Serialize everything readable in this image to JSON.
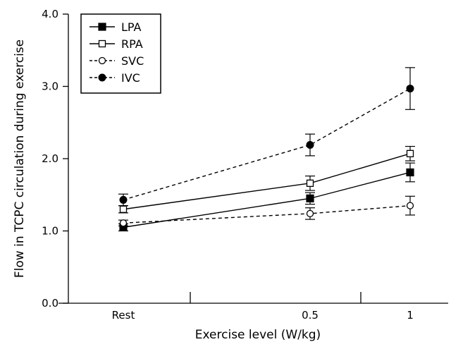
{
  "chart_data": {
    "type": "line",
    "xlabel": "Exercise level (W/kg)",
    "ylabel": "Flow in TCPC circulation during exercise",
    "ylim": [
      0,
      4
    ],
    "yticks": [
      "0.0",
      "1.0",
      "2.0",
      "3.0",
      "4.0"
    ],
    "categories": [
      "Rest",
      "0.5",
      "1"
    ],
    "legend_position": "top-left",
    "series": [
      {
        "name": "LPA",
        "marker": "filled-square",
        "line": "solid",
        "values": [
          1.05,
          1.45,
          1.81
        ],
        "error": [
          0.05,
          0.08,
          0.13
        ]
      },
      {
        "name": "RPA",
        "marker": "open-square",
        "line": "solid",
        "values": [
          1.3,
          1.66,
          2.07
        ],
        "error": [
          0.05,
          0.1,
          0.1
        ]
      },
      {
        "name": "SVC",
        "marker": "open-circle",
        "line": "dashed",
        "values": [
          1.11,
          1.24,
          1.35
        ],
        "error": [
          0.04,
          0.08,
          0.13
        ]
      },
      {
        "name": "IVC",
        "marker": "filled-circle",
        "line": "dashed",
        "values": [
          1.43,
          2.19,
          2.97
        ],
        "error": [
          0.08,
          0.15,
          0.29
        ]
      }
    ]
  }
}
